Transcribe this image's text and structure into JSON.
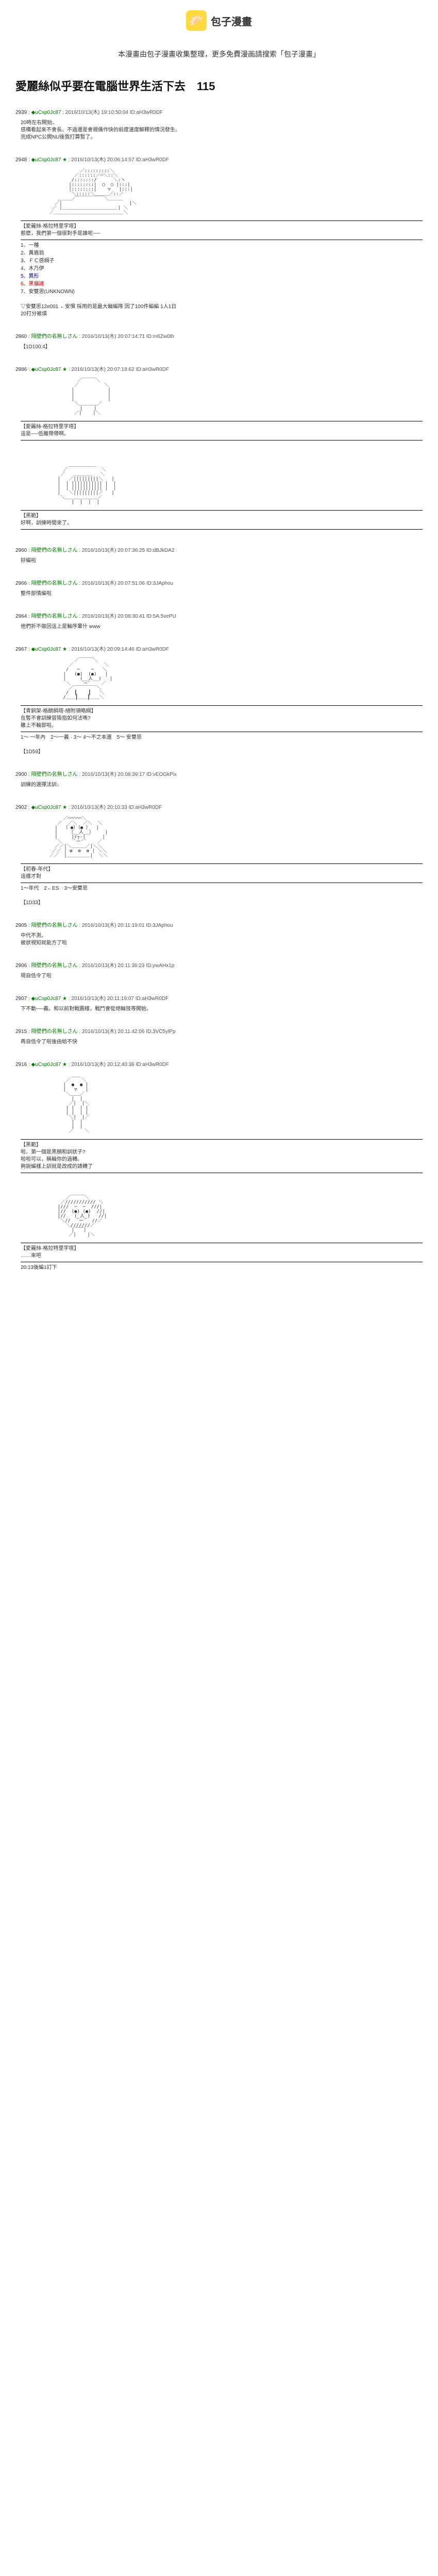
{
  "header": {
    "logo_text": "包子漫畫",
    "subtitle": "本漫畫由包子漫畫收集整理，更多免費漫画請搜索「包子漫畫」"
  },
  "title": "愛麗絲似乎要在電腦世界生活下去　115",
  "posts": [
    {
      "num": "2939",
      "name": "◆uCsp0Jc87",
      "date": "2016/10/13(木) 19:10:50:04",
      "id": "ID:aH3wR0DF",
      "body": [
        "20時左右開始。",
        "感構看起來不會長。不過還是會視儒作快的前度速度解釋的情況發生。",
        "完成NPC公開NU後我打算暫了。"
      ]
    },
    {
      "num": "2948",
      "name": "◆uCsp0Jc87 ★",
      "date": "2016/10/13(木) 20:06:14:57",
      "id": "ID:aH3wR0DF",
      "ascii": "face_desk",
      "after": {
        "box_title": "【愛麗絲-格拉特里字塔】",
        "box_line": "那麼，我們第一個很對手是誰呢──",
        "choices": [
          "1、一種",
          "2、黃眉翁",
          "3、ＦＣ感綱子",
          "4、木乃伊",
          "5、異形",
          "6、黑貓諸",
          "7、安雙思(UNKNOWN)"
        ],
        "tail": [
          "▽安雙思12e001 ←安慣 採用的是最大輪編隊 因了100件編編 1人1日",
          "20打分被填"
        ]
      }
    },
    {
      "num": "2960",
      "name": "隔壁們の名無しさん",
      "date": "2016/10/13(木) 20:07:14:71",
      "id": "ID:m6Zw0th",
      "body": [
        "【1D100:4】"
      ]
    },
    {
      "num": "2986",
      "name": "◆uCsp0Jc87 ★",
      "date": "2016/10/13(木) 20:07:18:62",
      "id": "ID:aH3wR0DF",
      "ascii": "back_head",
      "after": {
        "box_title": "【愛麗絲-格拉特里字塔】",
        "box_line": "這是──低離帶帶啊。"
      }
    },
    {
      "blank": true,
      "ascii": "hooded",
      "after": {
        "box_title": "【黑範】",
        "box_line": "好啊，訓練時間來了。"
      }
    },
    {
      "num": "2960",
      "name": "隔壁們の名無しさん",
      "date": "2016/10/13(木) 20:07:36:25",
      "id": "ID:dBJkDA2",
      "body": [
        "好編啦"
      ]
    },
    {
      "num": "2966",
      "name": "隔壁們の名無しさん",
      "date": "2016/10/13(木) 20:07:51:06",
      "id": "ID:3JAphou",
      "body": [
        "整件部情編啦"
      ]
    },
    {
      "num": "2964",
      "name": "隔壁們の名無しさん",
      "date": "2016/10/13(木) 20:08:30:41",
      "id": "ID:5A.5vePU",
      "body": [
        "他們折不做回這上是輪序暈什 www"
      ]
    },
    {
      "num": "2967",
      "name": "◆uCsp0Jc87 ★",
      "date": "2016/10/13(木) 20:09:14:46",
      "id": "ID:aH3wR0DF",
      "ascii": "male_face",
      "after": {
        "box_title": "【青銅架-格朗綱塔-絕附領略綱】",
        "box_line1": "在暫不會訓練冒險指如何法嗎?",
        "box_line2": "雖上不輪部啦。",
        "choice_line": "1～ 一年內　2～一義 · 3～ 4～不之本還　5～ 安雙思",
        "tag": "【1D59】"
      }
    },
    {
      "num": "2900",
      "name": "隔壁們の名無しさん",
      "date": "2016/10/13(木) 20:08:39:17",
      "id": "ID:vEOGkPix",
      "body": [
        "訓練的選擇法訓↓"
      ]
    },
    {
      "num": "2902",
      "name": "◆uCsp0Jc87 ★",
      "date": "2016/10/13(木) 20:10:33",
      "id": "ID:aH3wR0DF",
      "ascii": "alice_smile",
      "after": {
        "box_title": "【初春-年代】",
        "box_line": "這樣才對",
        "choice_line": "1～年代　2←ES　3～安雙思",
        "tag": "【1D33】"
      }
    },
    {
      "num": "2905",
      "name": "隔壁們の名無しさん",
      "date": "2016/10/13(木) 20:11:19:01",
      "id": "ID:3JAphou",
      "body": [
        "中代不測。",
        "被狀視知就能方了啦"
      ]
    },
    {
      "num": "2906",
      "name": "隔壁們の名無しさん",
      "date": "2016/10/13(木) 20:11:36:23",
      "id": "ID:ywAHx1p",
      "body": [
        "現自低令了啦"
      ]
    },
    {
      "num": "2907",
      "name": "◆uCsp0Jc87 ★",
      "date": "2016/10/13(木) 20:11:19:07",
      "id": "ID:aH3wR0DF",
      "body": [
        "下不動──義。和以前對戰圖樣，戰鬥會從絕輪技等開始。"
      ]
    },
    {
      "num": "2915",
      "name": "隔壁們の名無しさん",
      "date": "2016/10/13(木) 20:11:42:06",
      "id": "ID:3VC5ylPp",
      "body": [
        "再自低令了啦後由給不快"
      ]
    },
    {
      "num": "2916",
      "name": "◆uCsp0Jc87 ★",
      "date": "2016/10/13(木) 20:12:40:36",
      "id": "ID:aH3wR0DF",
      "ascii": "long_figure",
      "after": {
        "box_title": "【黑範】",
        "box_lines": [
          "啦、第一個是黑顏和訓狀子?",
          "啦啦可以，稱輪你的過轉。",
          "夠說編樣上訓就是改成的請轉了"
        ]
      }
    },
    {
      "blank": true,
      "ascii": "bob_hair",
      "after": {
        "box_title": "【愛麗絲-格拉特里字塔】",
        "box_line": "……來吧",
        "tag": "20:13後編1訂下"
      }
    }
  ]
}
